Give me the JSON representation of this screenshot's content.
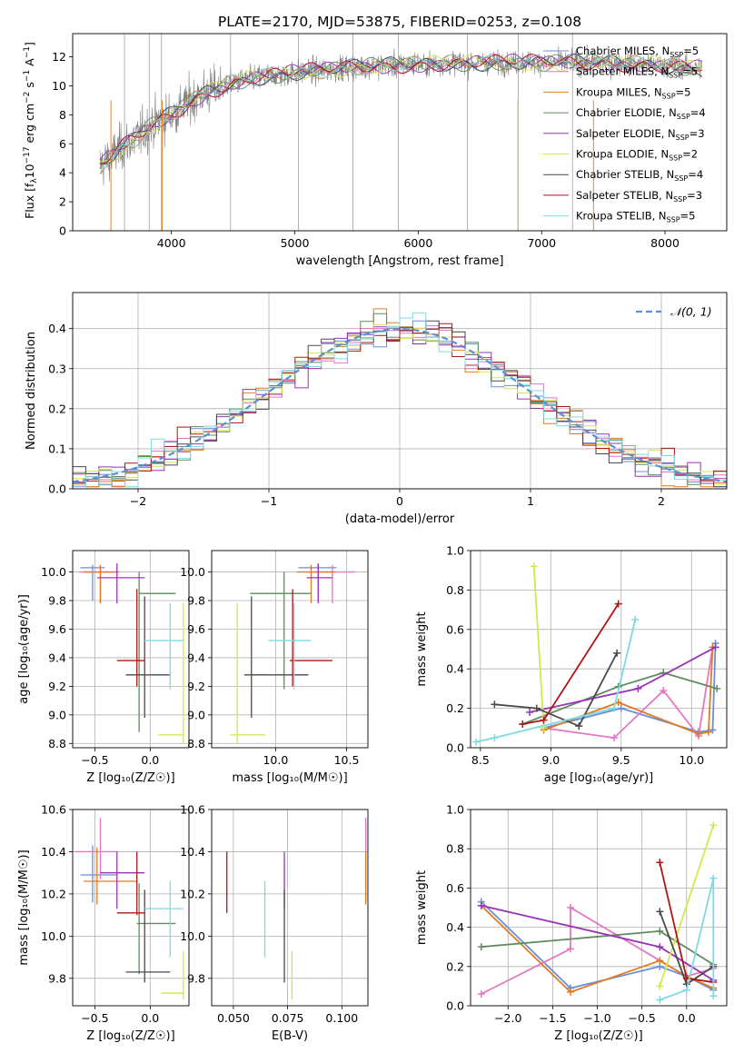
{
  "figure": {
    "title": "PLATE=2170, MJD=53875, FIBERID=0253, z=0.108"
  },
  "chart_data": [
    {
      "id": "spectrum",
      "type": "line",
      "xlabel": "wavelength [Angstrom, rest frame]",
      "ylabel_parts": [
        "Flux [f",
        "λ",
        "10",
        "−17",
        " erg cm",
        "−2",
        " s",
        "−1",
        " A",
        "−1",
        "]"
      ],
      "xlim": [
        3200,
        8500
      ],
      "ylim": [
        0,
        13.6
      ],
      "xticks": [
        4000,
        5000,
        6000,
        7000,
        8000
      ],
      "yticks": [
        0,
        2,
        4,
        6,
        8,
        10,
        12
      ],
      "grid": false,
      "legend_position": "lower-right",
      "continuum": {
        "x": [
          3420,
          3500,
          3600,
          3700,
          3800,
          3900,
          4000,
          4100,
          4200,
          4300,
          4500,
          4700,
          5000,
          5500,
          6000,
          6500,
          7000,
          7500,
          7800,
          8000,
          8200,
          8300
        ],
        "y": [
          4.5,
          5.0,
          5.8,
          6.3,
          7.0,
          7.6,
          8.0,
          8.6,
          9.2,
          9.6,
          10.2,
          10.6,
          10.9,
          11.3,
          11.5,
          11.6,
          11.6,
          11.6,
          11.5,
          11.4,
          11.3,
          11.2
        ]
      },
      "series": [
        {
          "name": "Chabrier MILES, N",
          "sub": "SSP",
          "suffix": "=5",
          "color": "#6b8fd6"
        },
        {
          "name": "Salpeter MILES, N",
          "sub": "SSP",
          "suffix": "=5",
          "color": "#e377c2"
        },
        {
          "name": "Kroupa MILES, N",
          "sub": "SSP",
          "suffix": "=5",
          "color": "#e07b24"
        },
        {
          "name": "Chabrier ELODIE, N",
          "sub": "SSP",
          "suffix": "=4",
          "color": "#5e8c5e"
        },
        {
          "name": "Salpeter ELODIE, N",
          "sub": "SSP",
          "suffix": "=3",
          "color": "#9b30b8"
        },
        {
          "name": "Kroupa ELODIE, N",
          "sub": "SSP",
          "suffix": "=2",
          "color": "#d4e64d"
        },
        {
          "name": "Chabrier STELIB, N",
          "sub": "SSP",
          "suffix": "=4",
          "color": "#4a4a4a"
        },
        {
          "name": "Salpeter STELIB, N",
          "sub": "SSP",
          "suffix": "=3",
          "color": "#b01515"
        },
        {
          "name": "Kroupa STELIB, N",
          "sub": "SSP",
          "suffix": "=5",
          "color": "#7fd9e3"
        }
      ]
    },
    {
      "id": "residuals",
      "type": "histogram",
      "xlabel": "(data-model)/error",
      "ylabel": "Normed distribution",
      "xlim": [
        -2.5,
        2.5
      ],
      "ylim": [
        0,
        0.49
      ],
      "xticks": [
        -2,
        -1,
        0,
        1,
        2
      ],
      "xtick_labels": [
        "−2",
        "−1",
        "0",
        "1",
        "2"
      ],
      "yticks": [
        0.0,
        0.1,
        0.2,
        0.3,
        0.4
      ],
      "ytick_labels": [
        "0.0",
        "0.1",
        "0.2",
        "0.3",
        "0.4"
      ],
      "grid": true,
      "bin_width": 0.1,
      "legend": {
        "label": "𝒩(0, 1)",
        "position": "top-right"
      },
      "reference_curve": {
        "type": "normal",
        "mean": 0,
        "sigma": 1,
        "color": "#5b8fd6"
      }
    },
    {
      "id": "age-vs-Z",
      "type": "errorbar",
      "xlabel": "Z [log₁₀(Z/Z☉)]",
      "ylabel": "age  [log₁₀(age/yr)]",
      "xlim": [
        -0.7,
        0.35
      ],
      "ylim": [
        8.77,
        10.15
      ],
      "xticks": [
        -0.5,
        0.0
      ],
      "xtick_labels": [
        "−0.5",
        "0.0"
      ],
      "yticks": [
        8.8,
        9.0,
        9.2,
        9.4,
        9.6,
        9.8,
        10.0
      ],
      "ytick_labels": [
        "8.8",
        "9.0",
        "9.2",
        "9.4",
        "9.6",
        "9.8",
        "10.0"
      ],
      "grid": true,
      "points": [
        {
          "x": -0.52,
          "xlo": -0.63,
          "xhi": -0.41,
          "y": 10.03,
          "ylo": 9.8,
          "yhi": 10.05,
          "color": "#6b8fd6"
        },
        {
          "x": -0.45,
          "xlo": -0.64,
          "xhi": -0.3,
          "y": 10.0,
          "ylo": 9.78,
          "yhi": 10.05,
          "color": "#e377c2"
        },
        {
          "x": -0.45,
          "xlo": -0.6,
          "xhi": -0.28,
          "y": 10.0,
          "ylo": 9.78,
          "yhi": 10.05,
          "color": "#e07b24"
        },
        {
          "x": -0.1,
          "xlo": -0.1,
          "xhi": 0.23,
          "y": 9.85,
          "ylo": 8.88,
          "yhi": 10.0,
          "color": "#5e8c5e"
        },
        {
          "x": -0.3,
          "xlo": -0.48,
          "xhi": -0.05,
          "y": 9.96,
          "ylo": 9.78,
          "yhi": 10.06,
          "color": "#9b30b8"
        },
        {
          "x": 0.3,
          "xlo": 0.07,
          "xhi": 0.3,
          "y": 8.86,
          "ylo": 8.8,
          "yhi": 9.78,
          "color": "#d4e64d"
        },
        {
          "x": -0.05,
          "xlo": -0.22,
          "xhi": 0.18,
          "y": 9.28,
          "ylo": 8.98,
          "yhi": 9.83,
          "color": "#4a4a4a"
        },
        {
          "x": -0.12,
          "xlo": -0.3,
          "xhi": -0.05,
          "y": 9.38,
          "ylo": 9.2,
          "yhi": 9.88,
          "color": "#b01515"
        },
        {
          "x": 0.18,
          "xlo": -0.05,
          "xhi": 0.3,
          "y": 9.52,
          "ylo": 9.18,
          "yhi": 9.78,
          "color": "#7fd9e3"
        }
      ]
    },
    {
      "id": "age-vs-mass",
      "type": "errorbar",
      "xlabel": "mass [log₁₀(M/M☉)]",
      "ylabel": "",
      "xlim": [
        9.55,
        10.65
      ],
      "ylim": [
        8.77,
        10.15
      ],
      "xticks": [
        10.0,
        10.5
      ],
      "xtick_labels": [
        "10.0",
        "10.5"
      ],
      "yticks": [
        8.8,
        9.0,
        9.2,
        9.4,
        9.6,
        9.8,
        10.0
      ],
      "ytick_labels": [
        "8.8",
        "9.0",
        "9.2",
        "9.4",
        "9.6",
        "9.8",
        "10.0"
      ],
      "grid": true,
      "points": [
        {
          "x": 10.3,
          "xlo": 10.16,
          "xhi": 10.43,
          "y": 10.03,
          "ylo": 9.8,
          "yhi": 10.05,
          "color": "#6b8fd6"
        },
        {
          "x": 10.4,
          "xlo": 10.27,
          "xhi": 10.56,
          "y": 10.0,
          "ylo": 9.78,
          "yhi": 10.05,
          "color": "#e377c2"
        },
        {
          "x": 10.25,
          "xlo": 10.15,
          "xhi": 10.42,
          "y": 10.0,
          "ylo": 9.78,
          "yhi": 10.05,
          "color": "#e07b24"
        },
        {
          "x": 10.06,
          "xlo": 9.82,
          "xhi": 10.25,
          "y": 9.85,
          "ylo": 9.18,
          "yhi": 10.0,
          "color": "#5e8c5e"
        },
        {
          "x": 10.3,
          "xlo": 10.22,
          "xhi": 10.4,
          "y": 9.96,
          "ylo": 9.78,
          "yhi": 10.06,
          "color": "#9b30b8"
        },
        {
          "x": 9.73,
          "xlo": 9.68,
          "xhi": 9.93,
          "y": 8.86,
          "ylo": 8.8,
          "yhi": 9.78,
          "color": "#d4e64d"
        },
        {
          "x": 9.83,
          "xlo": 9.78,
          "xhi": 10.23,
          "y": 9.28,
          "ylo": 8.98,
          "yhi": 9.83,
          "color": "#4a4a4a"
        },
        {
          "x": 10.12,
          "xlo": 10.1,
          "xhi": 10.4,
          "y": 9.38,
          "ylo": 9.2,
          "yhi": 9.88,
          "color": "#b01515"
        },
        {
          "x": 10.13,
          "xlo": 9.95,
          "xhi": 10.25,
          "y": 9.52,
          "ylo": 9.18,
          "yhi": 9.78,
          "color": "#7fd9e3"
        }
      ]
    },
    {
      "id": "weight-vs-age",
      "type": "line",
      "xlabel": "age  [log₁₀(age/yr)]",
      "ylabel": "mass weight",
      "xlim": [
        8.43,
        10.25
      ],
      "ylim": [
        0,
        1.0
      ],
      "xticks": [
        8.5,
        9.0,
        9.5,
        10.0
      ],
      "xtick_labels": [
        "8.5",
        "9.0",
        "9.5",
        "10.0"
      ],
      "yticks": [
        0,
        0.2,
        0.4,
        0.6,
        0.8,
        1.0
      ],
      "ytick_labels": [
        "0.0",
        "0.2",
        "0.4",
        "0.6",
        "0.8",
        "1.0"
      ],
      "grid": true,
      "series": [
        {
          "color": "#6b8fd6",
          "x": [
            8.95,
            9.5,
            10.05,
            10.15,
            10.17
          ],
          "y": [
            0.1,
            0.2,
            0.08,
            0.09,
            0.53
          ]
        },
        {
          "color": "#e377c2",
          "x": [
            8.95,
            9.45,
            9.8,
            10.05,
            10.15
          ],
          "y": [
            0.1,
            0.05,
            0.29,
            0.06,
            0.51
          ]
        },
        {
          "color": "#e07b24",
          "x": [
            8.95,
            9.48,
            10.05,
            10.12,
            10.15
          ],
          "y": [
            0.09,
            0.23,
            0.07,
            0.08,
            0.51
          ]
        },
        {
          "color": "#5e8c5e",
          "x": [
            8.8,
            9.48,
            9.8,
            10.18
          ],
          "y": [
            0.12,
            0.31,
            0.38,
            0.3
          ]
        },
        {
          "color": "#9b30b8",
          "x": [
            8.85,
            9.62,
            10.17
          ],
          "y": [
            0.18,
            0.3,
            0.51
          ]
        },
        {
          "color": "#d4e64d",
          "x": [
            8.88,
            8.95
          ],
          "y": [
            0.92,
            0.1
          ]
        },
        {
          "color": "#4a4a4a",
          "x": [
            8.6,
            8.9,
            9.2,
            9.47
          ],
          "y": [
            0.22,
            0.2,
            0.11,
            0.48
          ]
        },
        {
          "color": "#b01515",
          "x": [
            8.8,
            8.95,
            9.48
          ],
          "y": [
            0.12,
            0.14,
            0.73
          ]
        },
        {
          "color": "#7fd9e3",
          "x": [
            8.47,
            8.6,
            9.45,
            9.6
          ],
          "y": [
            0.03,
            0.05,
            0.2,
            0.65
          ]
        }
      ]
    },
    {
      "id": "mass-vs-Z",
      "type": "errorbar",
      "xlabel": "Z [log₁₀(Z/Z☉)]",
      "ylabel": "mass [log₁₀(M/M☉)]",
      "xlim": [
        -0.7,
        0.35
      ],
      "ylim": [
        9.67,
        10.6
      ],
      "xticks": [
        -0.5,
        0.0
      ],
      "xtick_labels": [
        "−0.5",
        "0.0"
      ],
      "yticks": [
        9.8,
        10.0,
        10.2,
        10.4,
        10.6
      ],
      "ytick_labels": [
        "9.8",
        "10.0",
        "10.2",
        "10.4",
        "10.6"
      ],
      "grid": true,
      "points": [
        {
          "x": -0.52,
          "xlo": -0.63,
          "xhi": -0.3,
          "y": 10.29,
          "ylo": 10.16,
          "yhi": 10.43,
          "color": "#6b8fd6"
        },
        {
          "x": -0.45,
          "xlo": -0.68,
          "xhi": -0.3,
          "y": 10.4,
          "ylo": 10.27,
          "yhi": 10.56,
          "color": "#e377c2"
        },
        {
          "x": -0.48,
          "xlo": -0.6,
          "xhi": -0.12,
          "y": 10.26,
          "ylo": 10.15,
          "yhi": 10.42,
          "color": "#e07b24"
        },
        {
          "x": -0.1,
          "xlo": -0.12,
          "xhi": 0.23,
          "y": 10.06,
          "ylo": 9.82,
          "yhi": 10.25,
          "color": "#5e8c5e"
        },
        {
          "x": -0.3,
          "xlo": -0.45,
          "xhi": -0.05,
          "y": 10.3,
          "ylo": 10.13,
          "yhi": 10.4,
          "color": "#9b30b8"
        },
        {
          "x": 0.3,
          "xlo": 0.1,
          "xhi": 0.3,
          "y": 9.73,
          "ylo": 9.7,
          "yhi": 9.93,
          "color": "#d4e64d"
        },
        {
          "x": -0.05,
          "xlo": -0.22,
          "xhi": 0.18,
          "y": 9.83,
          "ylo": 9.78,
          "yhi": 10.22,
          "color": "#4a4a4a"
        },
        {
          "x": -0.12,
          "xlo": -0.3,
          "xhi": -0.05,
          "y": 10.11,
          "ylo": 10.1,
          "yhi": 10.4,
          "color": "#b01515"
        },
        {
          "x": 0.18,
          "xlo": -0.05,
          "xhi": 0.3,
          "y": 10.13,
          "ylo": 9.9,
          "yhi": 10.26,
          "color": "#7fd9e3"
        }
      ]
    },
    {
      "id": "mass-vs-EBV",
      "type": "errorbar",
      "xlabel": "E(B-V)",
      "ylabel": "",
      "xlim": [
        0.04,
        0.112
      ],
      "ylim": [
        9.67,
        10.6
      ],
      "xticks": [
        0.05,
        0.075,
        0.1
      ],
      "xtick_labels": [
        "0.050",
        "0.075",
        "0.100"
      ],
      "yticks": [
        9.8,
        10.0,
        10.2,
        10.4,
        10.6
      ],
      "ytick_labels": [
        "9.8",
        "10.0",
        "10.2",
        "10.4",
        "10.6"
      ],
      "grid": true,
      "points": [
        {
          "x": 0.111,
          "xlo": 0.111,
          "xhi": 0.111,
          "y": 10.3,
          "ylo": 10.16,
          "yhi": 10.56,
          "color": "#e377c2"
        },
        {
          "x": 0.111,
          "xlo": 0.111,
          "xhi": 0.111,
          "y": 10.26,
          "ylo": 10.15,
          "yhi": 10.4,
          "color": "#e07b24"
        },
        {
          "x": 0.0735,
          "xlo": 0.0735,
          "xhi": 0.0735,
          "y": 10.3,
          "ylo": 10.13,
          "yhi": 10.4,
          "color": "#9b30b8"
        },
        {
          "x": 0.077,
          "xlo": 0.077,
          "xhi": 0.077,
          "y": 9.8,
          "ylo": 9.7,
          "yhi": 9.93,
          "color": "#d4e64d"
        },
        {
          "x": 0.0735,
          "xlo": 0.0735,
          "xhi": 0.0735,
          "y": 10.0,
          "ylo": 9.78,
          "yhi": 10.22,
          "color": "#4a4a4a"
        },
        {
          "x": 0.047,
          "xlo": 0.047,
          "xhi": 0.047,
          "y": 10.26,
          "ylo": 10.11,
          "yhi": 10.4,
          "color": "#b01515"
        },
        {
          "x": 0.0645,
          "xlo": 0.0645,
          "xhi": 0.0645,
          "y": 10.1,
          "ylo": 9.9,
          "yhi": 10.26,
          "color": "#7fd9e3"
        }
      ]
    },
    {
      "id": "weight-vs-Z",
      "type": "line",
      "xlabel": "Z [log₁₀(Z/Z☉)]",
      "ylabel": "mass weight",
      "xlim": [
        -2.42,
        0.45
      ],
      "ylim": [
        0,
        1.0
      ],
      "xticks": [
        -2.0,
        -1.5,
        -1.0,
        -0.5,
        0.0
      ],
      "xtick_labels": [
        "−2.0",
        "−1.5",
        "−1.0",
        "−0.5",
        "0.0"
      ],
      "yticks": [
        0,
        0.2,
        0.4,
        0.6,
        0.8,
        1.0
      ],
      "ytick_labels": [
        "0.0",
        "0.2",
        "0.4",
        "0.6",
        "0.8",
        "1.0"
      ],
      "grid": true,
      "series": [
        {
          "color": "#6b8fd6",
          "x": [
            -2.3,
            -1.3,
            -0.3,
            0.0,
            0.3
          ],
          "y": [
            0.53,
            0.09,
            0.2,
            0.15,
            0.08
          ]
        },
        {
          "color": "#e377c2",
          "x": [
            -2.3,
            -1.3,
            -1.3,
            0.0,
            0.3
          ],
          "y": [
            0.06,
            0.29,
            0.5,
            0.15,
            0.19
          ]
        },
        {
          "color": "#e07b24",
          "x": [
            -2.3,
            -1.3,
            -0.3,
            0.0,
            0.3
          ],
          "y": [
            0.51,
            0.07,
            0.23,
            0.15,
            0.09
          ]
        },
        {
          "color": "#5e8c5e",
          "x": [
            -2.3,
            -0.3,
            0.3
          ],
          "y": [
            0.3,
            0.38,
            0.21
          ]
        },
        {
          "color": "#9b30b8",
          "x": [
            -2.3,
            -0.3,
            0.3
          ],
          "y": [
            0.51,
            0.3,
            0.13
          ]
        },
        {
          "color": "#d4e64d",
          "x": [
            -0.3,
            0.3
          ],
          "y": [
            0.1,
            0.92
          ]
        },
        {
          "color": "#4a4a4a",
          "x": [
            -0.3,
            0.0,
            0.3
          ],
          "y": [
            0.48,
            0.11,
            0.2
          ]
        },
        {
          "color": "#b01515",
          "x": [
            -0.3,
            0.0,
            0.3
          ],
          "y": [
            0.73,
            0.14,
            0.12
          ]
        },
        {
          "color": "#7fd9e3",
          "x": [
            -0.3,
            0.0,
            0.3,
            0.3
          ],
          "y": [
            0.03,
            0.08,
            0.65,
            0.05
          ]
        }
      ]
    }
  ]
}
